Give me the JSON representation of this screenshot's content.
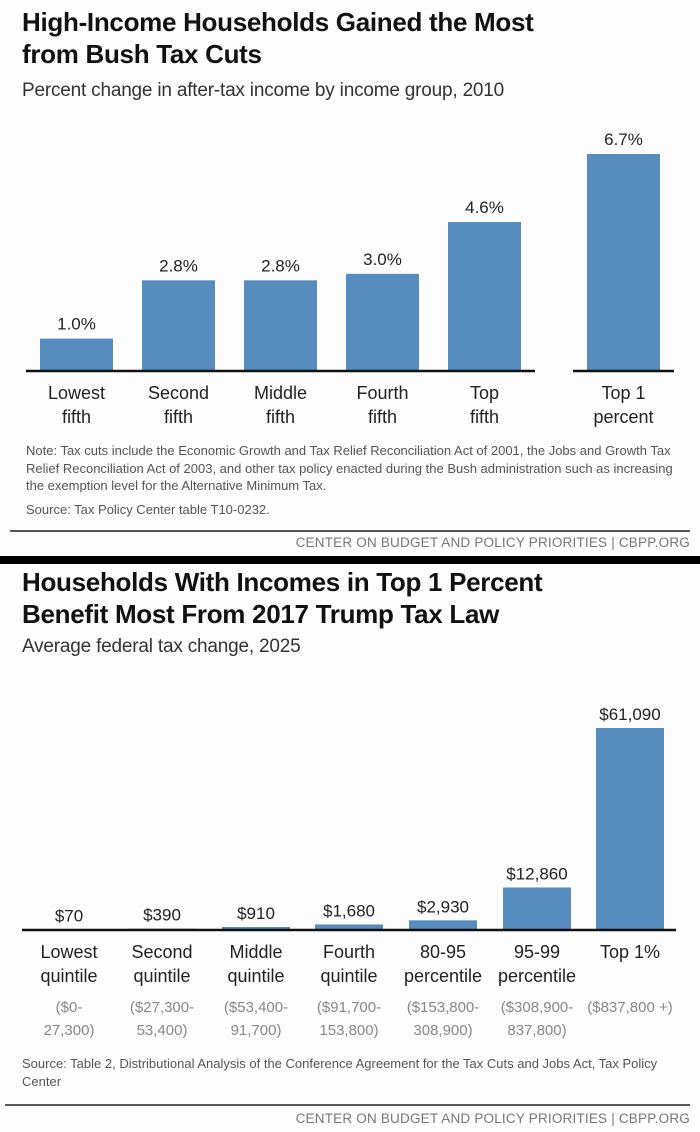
{
  "chart_data": [
    {
      "type": "bar",
      "title": "High-Income Households Gained the Most from Bush Tax Cuts",
      "title_lines": [
        "High-Income Households Gained the Most",
        "from Bush Tax Cuts"
      ],
      "subtitle": "Percent change in after-tax income by income group, 2010",
      "xlabel": "",
      "ylabel": "",
      "categories": [
        "Lowest fifth",
        "Second fifth",
        "Middle fifth",
        "Fourth fifth",
        "Top fifth",
        "Top 1 percent"
      ],
      "category_lines": [
        [
          "Lowest",
          "fifth"
        ],
        [
          "Second",
          "fifth"
        ],
        [
          "Middle",
          "fifth"
        ],
        [
          "Fourth",
          "fifth"
        ],
        [
          "Top",
          "fifth"
        ],
        [
          "Top 1",
          "percent"
        ]
      ],
      "values": [
        1.0,
        2.8,
        2.8,
        3.0,
        4.6,
        6.7
      ],
      "value_labels": [
        "1.0%",
        "2.8%",
        "2.8%",
        "3.0%",
        "4.6%",
        "6.7%"
      ],
      "unit": "%",
      "ylim": [
        0,
        6.7
      ],
      "grid": false,
      "legend": "none",
      "note": "Note: Tax cuts include the Economic Growth and Tax Relief Reconciliation Act of 2001, the Jobs and Growth Tax Relief Reconciliation Act of 2003, and other tax policy enacted during the Bush administration such as increasing the exemption level for the Alternative Minimum Tax.",
      "source": "Source: Tax Policy Center table T10-0232.",
      "footer": "CENTER ON BUDGET AND POLICY PRIORITIES | CBPP.ORG",
      "bar_color": "#578cbf"
    },
    {
      "type": "bar",
      "title": "Households With Incomes in Top 1 Percent Benefit Most From 2017 Trump Tax Law",
      "title_lines": [
        "Households With Incomes in Top 1 Percent",
        "Benefit Most From 2017 Trump Tax Law"
      ],
      "subtitle": "Average federal tax change, 2025",
      "xlabel": "",
      "ylabel": "",
      "categories": [
        "Lowest quintile",
        "Second quintile",
        "Middle quintile",
        "Fourth quintile",
        "80-95 percentile",
        "95-99 percentile",
        "Top 1%"
      ],
      "category_lines": [
        [
          "Lowest",
          "quintile"
        ],
        [
          "Second",
          "quintile"
        ],
        [
          "Middle",
          "quintile"
        ],
        [
          "Fourth",
          "quintile"
        ],
        [
          "80-95",
          "percentile"
        ],
        [
          "95-99",
          "percentile"
        ],
        [
          "Top 1%"
        ]
      ],
      "income_ranges": [
        [
          "($0-",
          "27,300)"
        ],
        [
          "($27,300-",
          "53,400)"
        ],
        [
          "($53,400-",
          "91,700)"
        ],
        [
          "($91,700-",
          "153,800)"
        ],
        [
          "($153,800-",
          "308,900)"
        ],
        [
          "($308,900-",
          "837,800)"
        ],
        [
          "($837,800 +)"
        ]
      ],
      "values": [
        70,
        390,
        910,
        1680,
        2930,
        12860,
        61090
      ],
      "value_labels": [
        "$70",
        "$390",
        "$910",
        "$1,680",
        "$2,930",
        "$12,860",
        "$61,090"
      ],
      "unit": "$",
      "ylim": [
        0,
        61090
      ],
      "grid": false,
      "legend": "none",
      "source": "Source: Table 2, Distributional Analysis of the Conference Agreement for the Tax Cuts and Jobs Act, Tax Policy Center",
      "footer": "CENTER ON BUDGET AND POLICY PRIORITIES | CBPP.ORG",
      "bar_color": "#578cbf"
    }
  ]
}
